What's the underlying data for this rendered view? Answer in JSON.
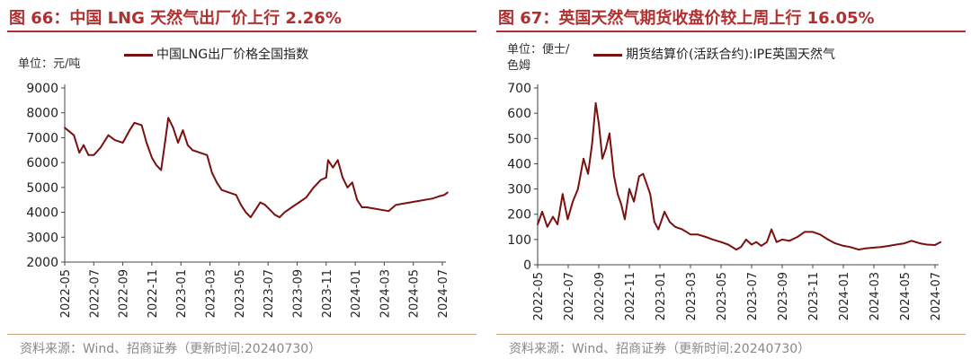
{
  "colors": {
    "title": "#b03030",
    "series": "#7a1010",
    "axis": "#444444"
  },
  "charts": [
    {
      "title": "图 66：中国 LNG 天然气出厂价上行 2.26%",
      "unit": "单位：元/吨",
      "legend": "中国LNG出厂价格全国指数",
      "source": "资料来源：Wind、招商证券（更新时间:20240730）"
    },
    {
      "title": "图 67：英国天然气期货收盘价较上周上行 16.05%",
      "unit_line1": "单位：便士/",
      "unit_line2": "色姆",
      "legend": "期货结算价(活跃合约):IPE英国天然气",
      "source": "资料来源：Wind、招商证券（更新时间:20240730）"
    }
  ],
  "chart_data": [
    {
      "type": "line",
      "title": "图 66：中国 LNG 天然气出厂价上行 2.26%",
      "ylabel": "单位：元/吨",
      "ylim": [
        2000,
        9000
      ],
      "yticks": [
        2000,
        3000,
        4000,
        5000,
        6000,
        7000,
        8000,
        9000
      ],
      "xlim": [
        "2022-05",
        "2024-07"
      ],
      "xticks": [
        "2022-05",
        "2022-07",
        "2022-09",
        "2022-11",
        "2023-01",
        "2023-03",
        "2023-05",
        "2023-07",
        "2023-09",
        "2023-11",
        "2024-01",
        "2024-03",
        "2024-05",
        "2024-07"
      ],
      "legend_position": "top-center",
      "series": [
        {
          "name": "中国LNG出厂价格全国指数",
          "points": [
            [
              "2022-05-01",
              7400
            ],
            [
              "2022-05-20",
              7100
            ],
            [
              "2022-06-01",
              6400
            ],
            [
              "2022-06-10",
              6700
            ],
            [
              "2022-06-20",
              6300
            ],
            [
              "2022-07-01",
              6300
            ],
            [
              "2022-07-15",
              6600
            ],
            [
              "2022-08-01",
              7100
            ],
            [
              "2022-08-15",
              6900
            ],
            [
              "2022-09-01",
              6800
            ],
            [
              "2022-09-15",
              7300
            ],
            [
              "2022-09-25",
              7600
            ],
            [
              "2022-10-10",
              7500
            ],
            [
              "2022-10-20",
              6800
            ],
            [
              "2022-11-01",
              6200
            ],
            [
              "2022-11-10",
              5900
            ],
            [
              "2022-11-20",
              5700
            ],
            [
              "2022-11-28",
              6800
            ],
            [
              "2022-12-05",
              7800
            ],
            [
              "2022-12-15",
              7400
            ],
            [
              "2022-12-25",
              6800
            ],
            [
              "2023-01-05",
              7300
            ],
            [
              "2023-01-15",
              6700
            ],
            [
              "2023-01-25",
              6500
            ],
            [
              "2023-02-10",
              6400
            ],
            [
              "2023-02-25",
              6300
            ],
            [
              "2023-03-05",
              5600
            ],
            [
              "2023-03-15",
              5200
            ],
            [
              "2023-03-25",
              4900
            ],
            [
              "2023-04-10",
              4800
            ],
            [
              "2023-04-25",
              4700
            ],
            [
              "2023-05-05",
              4300
            ],
            [
              "2023-05-15",
              4000
            ],
            [
              "2023-05-25",
              3800
            ],
            [
              "2023-06-05",
              4100
            ],
            [
              "2023-06-15",
              4400
            ],
            [
              "2023-06-25",
              4300
            ],
            [
              "2023-07-05",
              4100
            ],
            [
              "2023-07-15",
              3900
            ],
            [
              "2023-07-25",
              3800
            ],
            [
              "2023-08-05",
              4000
            ],
            [
              "2023-08-20",
              4200
            ],
            [
              "2023-09-05",
              4400
            ],
            [
              "2023-09-20",
              4600
            ],
            [
              "2023-10-05",
              5000
            ],
            [
              "2023-10-20",
              5300
            ],
            [
              "2023-11-01",
              5400
            ],
            [
              "2023-11-05",
              6100
            ],
            [
              "2023-11-15",
              5800
            ],
            [
              "2023-11-25",
              6100
            ],
            [
              "2023-12-05",
              5400
            ],
            [
              "2023-12-15",
              5000
            ],
            [
              "2023-12-25",
              5200
            ],
            [
              "2024-01-05",
              4500
            ],
            [
              "2024-01-15",
              4200
            ],
            [
              "2024-01-25",
              4200
            ],
            [
              "2024-02-10",
              4150
            ],
            [
              "2024-02-25",
              4100
            ],
            [
              "2024-03-10",
              4050
            ],
            [
              "2024-03-25",
              4300
            ],
            [
              "2024-04-10",
              4350
            ],
            [
              "2024-04-25",
              4400
            ],
            [
              "2024-05-10",
              4450
            ],
            [
              "2024-05-25",
              4500
            ],
            [
              "2024-06-10",
              4550
            ],
            [
              "2024-06-25",
              4650
            ],
            [
              "2024-07-05",
              4700
            ],
            [
              "2024-07-12",
              4800
            ]
          ]
        }
      ]
    },
    {
      "type": "line",
      "title": "图 67：英国天然气期货收盘价较上周上行 16.05%",
      "ylabel": "单位：便士/色姆",
      "ylim": [
        0,
        700
      ],
      "yticks": [
        0,
        100,
        200,
        300,
        400,
        500,
        600,
        700
      ],
      "xlim": [
        "2022-05",
        "2024-07"
      ],
      "xticks": [
        "2022-05",
        "2022-07",
        "2022-09",
        "2022-11",
        "2023-01",
        "2023-03",
        "2023-05",
        "2023-07",
        "2023-09",
        "2023-11",
        "2024-01",
        "2024-03",
        "2024-05",
        "2024-07"
      ],
      "legend_position": "top-center",
      "series": [
        {
          "name": "期货结算价(活跃合约):IPE英国天然气",
          "points": [
            [
              "2022-05-01",
              160
            ],
            [
              "2022-05-10",
              210
            ],
            [
              "2022-05-20",
              150
            ],
            [
              "2022-06-01",
              190
            ],
            [
              "2022-06-10",
              160
            ],
            [
              "2022-06-20",
              280
            ],
            [
              "2022-06-30",
              180
            ],
            [
              "2022-07-10",
              250
            ],
            [
              "2022-07-20",
              300
            ],
            [
              "2022-08-01",
              420
            ],
            [
              "2022-08-10",
              360
            ],
            [
              "2022-08-18",
              480
            ],
            [
              "2022-08-25",
              640
            ],
            [
              "2022-09-01",
              560
            ],
            [
              "2022-09-08",
              420
            ],
            [
              "2022-09-15",
              460
            ],
            [
              "2022-09-22",
              520
            ],
            [
              "2022-10-01",
              350
            ],
            [
              "2022-10-08",
              280
            ],
            [
              "2022-10-15",
              240
            ],
            [
              "2022-10-22",
              180
            ],
            [
              "2022-11-01",
              300
            ],
            [
              "2022-11-10",
              250
            ],
            [
              "2022-11-20",
              350
            ],
            [
              "2022-11-28",
              360
            ],
            [
              "2022-12-05",
              320
            ],
            [
              "2022-12-12",
              280
            ],
            [
              "2022-12-20",
              170
            ],
            [
              "2022-12-28",
              140
            ],
            [
              "2023-01-10",
              210
            ],
            [
              "2023-01-20",
              170
            ],
            [
              "2023-02-01",
              150
            ],
            [
              "2023-02-15",
              140
            ],
            [
              "2023-03-01",
              120
            ],
            [
              "2023-03-15",
              120
            ],
            [
              "2023-04-01",
              110
            ],
            [
              "2023-04-15",
              100
            ],
            [
              "2023-05-01",
              90
            ],
            [
              "2023-05-15",
              80
            ],
            [
              "2023-06-01",
              60
            ],
            [
              "2023-06-10",
              70
            ],
            [
              "2023-06-20",
              100
            ],
            [
              "2023-07-01",
              80
            ],
            [
              "2023-07-10",
              90
            ],
            [
              "2023-07-20",
              75
            ],
            [
              "2023-08-01",
              90
            ],
            [
              "2023-08-10",
              140
            ],
            [
              "2023-08-20",
              90
            ],
            [
              "2023-09-01",
              100
            ],
            [
              "2023-09-15",
              95
            ],
            [
              "2023-10-01",
              110
            ],
            [
              "2023-10-15",
              130
            ],
            [
              "2023-11-01",
              130
            ],
            [
              "2023-11-15",
              120
            ],
            [
              "2023-12-01",
              100
            ],
            [
              "2023-12-15",
              85
            ],
            [
              "2024-01-01",
              75
            ],
            [
              "2024-01-15",
              70
            ],
            [
              "2024-02-01",
              60
            ],
            [
              "2024-02-15",
              65
            ],
            [
              "2024-03-01",
              68
            ],
            [
              "2024-03-15",
              70
            ],
            [
              "2024-04-01",
              75
            ],
            [
              "2024-04-15",
              80
            ],
            [
              "2024-05-01",
              85
            ],
            [
              "2024-05-15",
              95
            ],
            [
              "2024-06-01",
              85
            ],
            [
              "2024-06-15",
              80
            ],
            [
              "2024-07-01",
              78
            ],
            [
              "2024-07-12",
              90
            ]
          ]
        }
      ]
    }
  ]
}
